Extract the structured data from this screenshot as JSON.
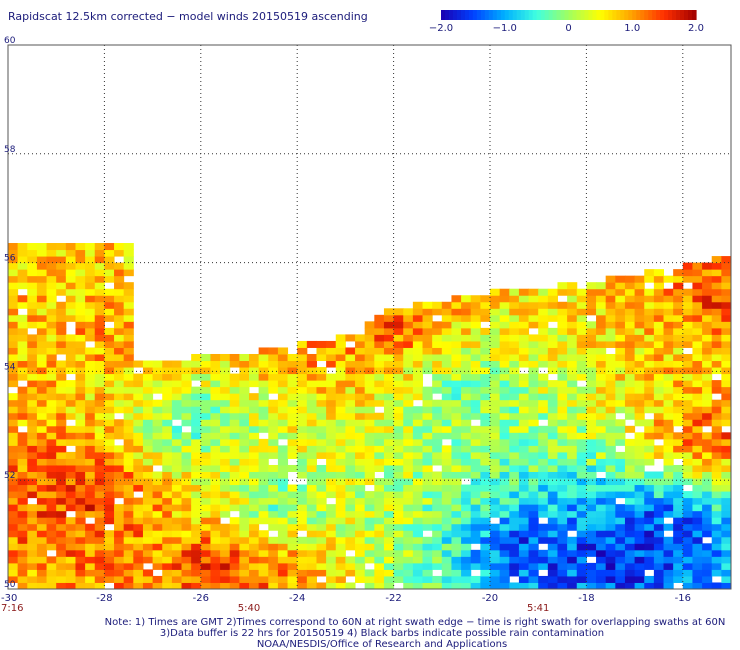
{
  "chart_data": {
    "type": "heatmap",
    "title": "Rapidscat 12.5km corrected − model winds 20150519 ascending",
    "xlim": [
      -30,
      -15
    ],
    "ylim": [
      50,
      60
    ],
    "x_ticks": [
      -30,
      -28,
      -26,
      -24,
      -22,
      -20,
      -18,
      -16
    ],
    "x_tick_labels": [
      "-30",
      "-28",
      "-26",
      "-24",
      "-22",
      "-20",
      "-18",
      "-16"
    ],
    "y_ticks": [
      50,
      52,
      54,
      56,
      58,
      60
    ],
    "y_tick_labels": [
      "50",
      "52",
      "54",
      "56",
      "58",
      "60"
    ],
    "grid": true,
    "colorbar": {
      "range": [
        -2.0,
        2.0
      ],
      "ticks": [
        -2.0,
        -1.0,
        0,
        1.0,
        2.0
      ],
      "tick_labels": [
        "−2.0",
        "−1.0",
        "0",
        "1.0",
        "2.0"
      ],
      "colors": [
        "#1a00b0",
        "#0040ff",
        "#00b0ff",
        "#40ffe0",
        "#a0ff60",
        "#ffff00",
        "#ffa000",
        "#ff3000",
        "#a00000"
      ]
    },
    "time_labels": [
      {
        "lon": -30,
        "text": "7:16"
      },
      {
        "lon": -25,
        "text": "5:40"
      },
      {
        "lon": -19,
        "text": "5:41"
      }
    ],
    "swath_top_lat": [
      {
        "lon": -30.0,
        "lat": 56.3
      },
      {
        "lon": -27.4,
        "lat": 56.3
      },
      {
        "lon": -27.3,
        "lat": 54.1
      },
      {
        "lon": -25.0,
        "lat": 54.3
      },
      {
        "lon": -23.0,
        "lat": 54.6
      },
      {
        "lon": -22.0,
        "lat": 55.1
      },
      {
        "lon": -20.0,
        "lat": 55.4
      },
      {
        "lon": -18.0,
        "lat": 55.6
      },
      {
        "lon": -16.5,
        "lat": 55.8
      },
      {
        "lon": -15.0,
        "lat": 56.1
      }
    ],
    "regions": [
      {
        "lon": -29.0,
        "lat": 54.8,
        "value": 0.9
      },
      {
        "lon": -28.5,
        "lat": 54.6,
        "value": 1.2
      },
      {
        "lon": -28.9,
        "lat": 51.8,
        "value": 1.6
      },
      {
        "lon": -28.5,
        "lat": 51.5,
        "value": 1.7
      },
      {
        "lon": -25.8,
        "lat": 50.3,
        "value": 1.7
      },
      {
        "lon": -25.0,
        "lat": 50.2,
        "value": 1.4
      },
      {
        "lon": -22.2,
        "lat": 54.8,
        "value": 1.5
      },
      {
        "lon": -23.8,
        "lat": 54.3,
        "value": 1.2
      },
      {
        "lon": -19.2,
        "lat": 50.6,
        "value": -1.8
      },
      {
        "lon": -17.5,
        "lat": 50.5,
        "value": -2.0
      },
      {
        "lon": -16.5,
        "lat": 50.9,
        "value": -1.9
      },
      {
        "lon": -15.6,
        "lat": 52.8,
        "value": 1.5
      },
      {
        "lon": -15.3,
        "lat": 55.3,
        "value": 1.6
      },
      {
        "lon": -16.5,
        "lat": 54.6,
        "value": 0.9
      },
      {
        "lon": -26.2,
        "lat": 53.0,
        "value": -0.4
      },
      {
        "lon": -24.5,
        "lat": 51.5,
        "value": -0.2
      },
      {
        "lon": -20.5,
        "lat": 53.5,
        "value": -0.3
      }
    ]
  },
  "notes": [
    "Note: 1) Times are GMT 2)Times correspond to 60N at right swath edge − time is right swath for overlapping swaths at 60N",
    "3)Data buffer is 22 hrs for 20150519 4) Black barbs indicate possible rain contamination",
    "NOAA/NESDIS/Office of Research and Applications"
  ]
}
